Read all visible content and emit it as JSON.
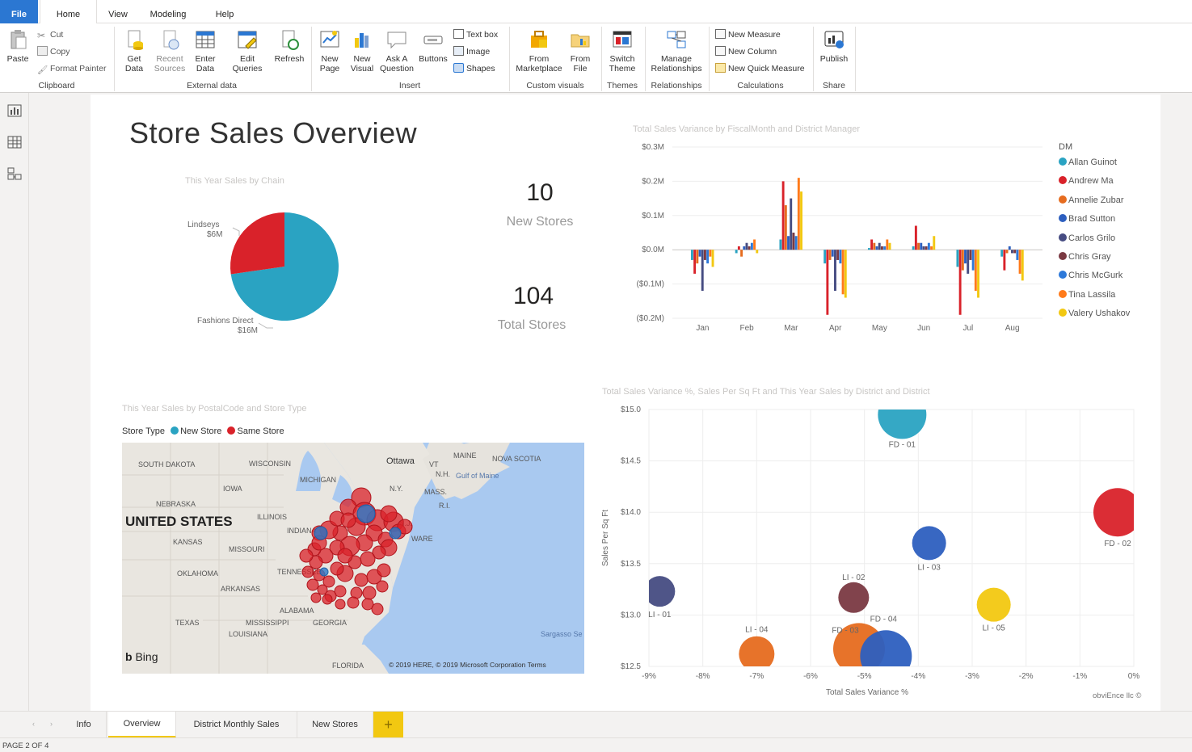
{
  "ribbon": {
    "tabs": [
      {
        "label": "File",
        "x": 0,
        "w": 47
      },
      {
        "label": "Home",
        "x": 49,
        "w": 71
      },
      {
        "label": "View",
        "x": 120,
        "w": 52
      },
      {
        "label": "Modeling",
        "x": 172,
        "w": 72
      },
      {
        "label": "Help",
        "x": 244,
        "w": 68
      }
    ],
    "clipboard": {
      "paste": "Paste",
      "cut": "Cut",
      "copy": "Copy",
      "format_painter": "Format Painter",
      "label": "Clipboard"
    },
    "external_data": {
      "get_data": "Get\nData",
      "recent_sources": "Recent\nSources",
      "enter_data": "Enter\nData",
      "edit_queries": "Edit\nQueries",
      "refresh": "Refresh",
      "label": "External data"
    },
    "insert": {
      "new_page": "New\nPage",
      "new_visual": "New\nVisual",
      "ask_question": "Ask A\nQuestion",
      "buttons": "Buttons",
      "text_box": "Text box",
      "image": "Image",
      "shapes": "Shapes",
      "label": "Insert"
    },
    "custom_visuals": {
      "from_marketplace": "From\nMarketplace",
      "from_file": "From\nFile",
      "label": "Custom visuals"
    },
    "themes": {
      "switch_theme": "Switch\nTheme",
      "label": "Themes"
    },
    "relationships": {
      "manage": "Manage\nRelationships",
      "label": "Relationships"
    },
    "calculations": {
      "new_measure": "New Measure",
      "new_column": "New Column",
      "new_quick_measure": "New Quick Measure",
      "label": "Calculations"
    },
    "share": {
      "publish": "Publish",
      "label": "Share"
    }
  },
  "report": {
    "title": "Store Sales Overview",
    "pie_title": "This Year Sales by Chain",
    "pie_label_1_name": "Lindseys",
    "pie_label_1_value": "$6M",
    "pie_label_2_name": "Fashions Direct",
    "pie_label_2_value": "$16M",
    "card1_value": "10",
    "card1_label": "New Stores",
    "card2_value": "104",
    "card2_label": "Total Stores",
    "bar_title": "Total Sales Variance by FiscalMonth and District Manager",
    "legend_title": "DM",
    "map_title": "This Year Sales by PostalCode and Store Type",
    "map_legend_title": "Store Type",
    "map_legend_new": "New Store",
    "map_legend_same": "Same Store",
    "scatter_title": "Total Sales Variance %, Sales Per Sq Ft and This Year Sales by District and District",
    "watermark": "obviEnce llc ©"
  },
  "map": {
    "labels": [
      "SOUTH DAKOTA",
      "WISCONSIN",
      "MICHIGAN",
      "IOWA",
      "NEBRASKA",
      "ILLINOIS",
      "INDIANA",
      "KANSAS",
      "MISSOURI",
      "OKLAHOMA",
      "ARKANSAS",
      "TENNESSEE",
      "ALABAMA",
      "MISSISSIPPI",
      "GEORGIA",
      "TEXAS",
      "LOUISIANA",
      "FLORIDA",
      "Ottawa",
      "VT",
      "N.H.",
      "MAINE",
      "NOVA SCOTIA",
      "Gulf of Maine",
      "N.Y.",
      "MASS.",
      "R.I.",
      "N.J.",
      "WARE",
      "Sargasso Se"
    ],
    "country": "UNITED STATES",
    "bing": "Bing",
    "copyright": "© 2019 HERE, © 2019 Microsoft Corporation  Terms"
  },
  "pages": {
    "tabs": [
      "Info",
      "Overview",
      "District Monthly Sales",
      "New Stores"
    ],
    "active": "Overview",
    "add": "+",
    "status": "PAGE 2 OF 4"
  },
  "colors": {
    "teal": "#2aa3c2",
    "red": "#d9222a",
    "orange": "#e66c1f",
    "blue": "#2d5fbf",
    "navy": "#464c82",
    "maroon": "#7a3942",
    "yellow": "#f2c811",
    "accent": "#2b77d2"
  },
  "chart_data": [
    {
      "type": "pie",
      "title": "This Year Sales by Chain",
      "categories": [
        "Fashions Direct",
        "Lindseys"
      ],
      "values": [
        16,
        6
      ],
      "unit": "$M",
      "colors": [
        "#2aa3c2",
        "#d9222a"
      ]
    },
    {
      "type": "bar",
      "title": "Total Sales Variance by FiscalMonth and District Manager",
      "categories": [
        "Jan",
        "Feb",
        "Mar",
        "Apr",
        "May",
        "Jun",
        "Jul",
        "Aug"
      ],
      "ylim": [
        -0.2,
        0.3
      ],
      "yticks": [
        "$0.3M",
        "$0.2M",
        "$0.1M",
        "$0.0M",
        "($0.1M)",
        "($0.2M)"
      ],
      "ytick_values": [
        0.3,
        0.2,
        0.1,
        0.0,
        -0.1,
        -0.2
      ],
      "legend_title": "DM",
      "legend_position": "right",
      "series": [
        {
          "name": "Allan Guinot",
          "color": "#2aa3c2",
          "values": [
            -0.03,
            -0.01,
            0.03,
            -0.04,
            0.005,
            0.01,
            -0.05,
            -0.02
          ]
        },
        {
          "name": "Andrew Ma",
          "color": "#d9222a",
          "values": [
            -0.07,
            0.01,
            0.2,
            -0.19,
            0.03,
            0.07,
            -0.19,
            -0.06
          ]
        },
        {
          "name": "Annelie Zubar",
          "color": "#e66c1f",
          "values": [
            -0.04,
            -0.02,
            0.13,
            -0.03,
            0.02,
            0.02,
            -0.06,
            -0.01
          ]
        },
        {
          "name": "Brad Sutton",
          "color": "#2d5fbf",
          "values": [
            -0.02,
            0.01,
            0.04,
            -0.02,
            0.01,
            0.02,
            -0.04,
            0.01
          ]
        },
        {
          "name": "Carlos Grilo",
          "color": "#464c82",
          "values": [
            -0.12,
            0.02,
            0.15,
            -0.12,
            0.02,
            0.01,
            -0.07,
            -0.01
          ]
        },
        {
          "name": "Chris Gray",
          "color": "#7a3942",
          "values": [
            -0.03,
            0.01,
            0.05,
            -0.03,
            0.01,
            0.01,
            -0.03,
            -0.01
          ]
        },
        {
          "name": "Chris McGurk",
          "color": "#2d79d9",
          "values": [
            -0.04,
            0.02,
            0.04,
            -0.04,
            0.01,
            0.02,
            -0.06,
            -0.03
          ]
        },
        {
          "name": "Tina Lassila",
          "color": "#ff7a1a",
          "values": [
            -0.02,
            0.03,
            0.21,
            -0.13,
            0.03,
            0.01,
            -0.12,
            -0.07
          ]
        },
        {
          "name": "Valery Ushakov",
          "color": "#f2c811",
          "values": [
            -0.05,
            -0.01,
            0.17,
            -0.14,
            0.02,
            0.04,
            -0.14,
            -0.09
          ]
        }
      ]
    },
    {
      "type": "scatter",
      "title": "Total Sales Variance %, Sales Per Sq Ft and This Year Sales by District and District",
      "xlabel": "Total Sales Variance %",
      "ylabel": "Sales Per Sq Ft",
      "xlim": [
        -9,
        0
      ],
      "ylim": [
        12.5,
        15.0
      ],
      "xticks": [
        "-9%",
        "-8%",
        "-7%",
        "-6%",
        "-5%",
        "-4%",
        "-3%",
        "-2%",
        "-1%",
        "0%"
      ],
      "yticks": [
        "$15.0",
        "$14.5",
        "$14.0",
        "$13.5",
        "$13.0",
        "$12.5"
      ],
      "points": [
        {
          "label": "FD - 01",
          "x": -4.3,
          "y": 14.95,
          "size": 30,
          "color": "#2aa3c2"
        },
        {
          "label": "FD - 02",
          "x": -0.3,
          "y": 14.0,
          "size": 30,
          "color": "#d9222a"
        },
        {
          "label": "LI - 03",
          "x": -3.8,
          "y": 13.7,
          "size": 21,
          "color": "#2d5fbf"
        },
        {
          "label": "LI - 01",
          "x": -8.8,
          "y": 13.23,
          "size": 19,
          "color": "#464c82"
        },
        {
          "label": "LI - 02",
          "x": -5.2,
          "y": 13.17,
          "size": 19,
          "color": "#7a3942"
        },
        {
          "label": "LI - 05",
          "x": -2.6,
          "y": 13.1,
          "size": 21,
          "color": "#f2c811"
        },
        {
          "label": "LI - 04",
          "x": -7.0,
          "y": 12.62,
          "size": 22,
          "color": "#e66c1f"
        },
        {
          "label": "FD - 03",
          "x": -5.1,
          "y": 12.67,
          "size": 32,
          "color": "#e66c1f"
        },
        {
          "label": "FD - 04",
          "x": -4.6,
          "y": 12.6,
          "size": 32,
          "color": "#2d5fbf"
        }
      ]
    }
  ]
}
